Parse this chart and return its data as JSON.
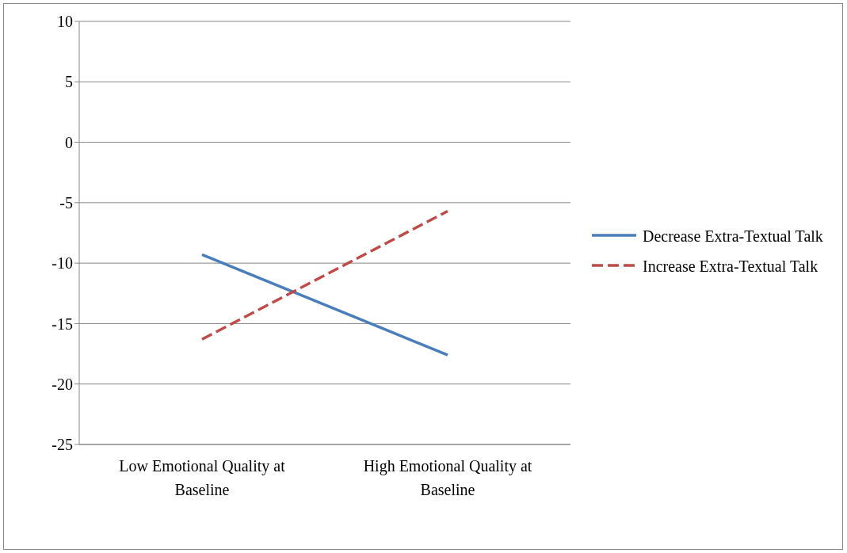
{
  "chart_data": {
    "type": "line",
    "categories": [
      "Low Emotional Quality at Baseline",
      "High Emotional Quality at Baseline"
    ],
    "series": [
      {
        "name": "Decrease Extra-Textual Talk",
        "color": "#4a7ebb",
        "values": [
          -9.3,
          -17.6
        ],
        "line_style": "solid"
      },
      {
        "name": "Increase Extra-Textual Talk",
        "color": "#be4b48",
        "values": [
          -16.3,
          -5.7
        ],
        "line_style": "dashed"
      }
    ],
    "ylim": [
      -25,
      10
    ],
    "yticks": [
      -25,
      -20,
      -15,
      -10,
      -5,
      0,
      5,
      10
    ],
    "grid": "y",
    "legend": "right",
    "marker": "none"
  }
}
